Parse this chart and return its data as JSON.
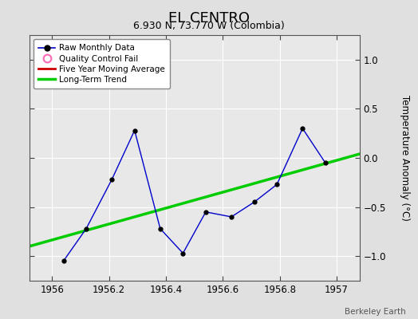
{
  "title": "EL CENTRO",
  "subtitle": "6.930 N, 73.770 W (Colombia)",
  "ylabel": "Temperature Anomaly (°C)",
  "attribution": "Berkeley Earth",
  "xlim": [
    1955.92,
    1957.08
  ],
  "ylim": [
    -1.25,
    1.25
  ],
  "yticks": [
    -1,
    -0.5,
    0,
    0.5,
    1
  ],
  "xticks": [
    1956,
    1956.2,
    1956.4,
    1956.6,
    1956.8,
    1957
  ],
  "bg_color": "#e0e0e0",
  "plot_bg_color": "#e8e8e8",
  "raw_x": [
    1956.04,
    1956.12,
    1956.21,
    1956.29,
    1956.38,
    1956.46,
    1956.54,
    1956.63,
    1956.71,
    1956.79,
    1956.88,
    1956.96
  ],
  "raw_y": [
    -1.05,
    -0.72,
    -0.22,
    0.28,
    -0.72,
    -0.97,
    -0.55,
    -0.6,
    -0.45,
    -0.27,
    0.3,
    -0.05
  ],
  "trend_x": [
    1955.92,
    1957.08
  ],
  "trend_y": [
    -0.9,
    0.04
  ],
  "line_color": "#0000cc",
  "marker_color": "#000000",
  "trend_color": "#00cc00",
  "mavg_color": "#cc0000",
  "qc_color": "#ff69b4",
  "legend_labels": [
    "Raw Monthly Data",
    "Quality Control Fail",
    "Five Year Moving Average",
    "Long-Term Trend"
  ]
}
